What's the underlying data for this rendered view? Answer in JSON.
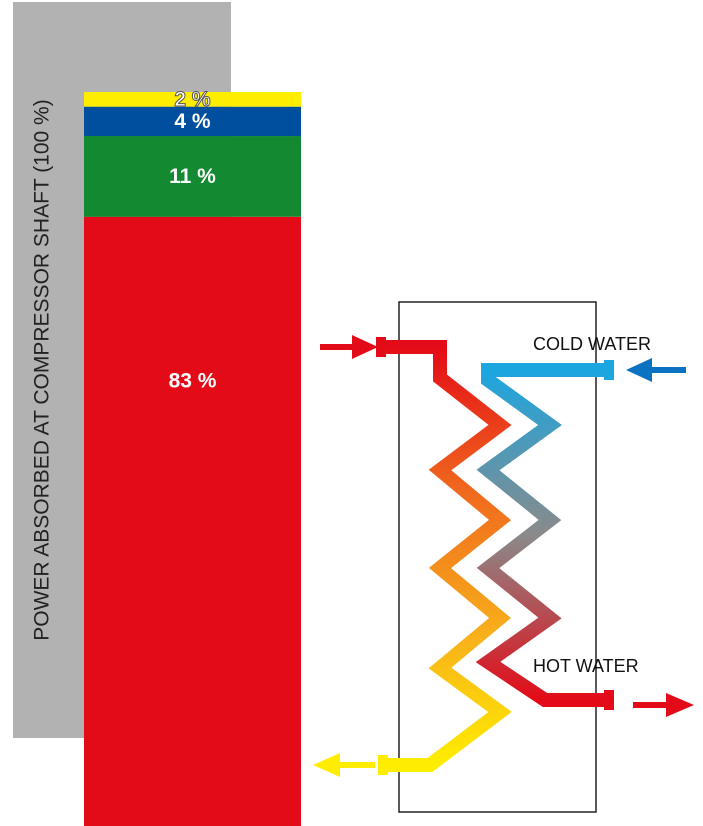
{
  "chart_data": {
    "type": "stacked-bar",
    "y_label": "POWER ABSORBED AT COMPRESSOR SHAFT (100 %)",
    "values": [
      83,
      11,
      4,
      2
    ],
    "value_labels": [
      "83 %",
      "11 %",
      "4 %",
      "2 %"
    ],
    "colors": [
      "#e30b17",
      "#138a32",
      "#004f9f",
      "#ffed00"
    ]
  },
  "diagram": {
    "cold_water": "COLD WATER",
    "hot_water": "HOT WATER"
  }
}
